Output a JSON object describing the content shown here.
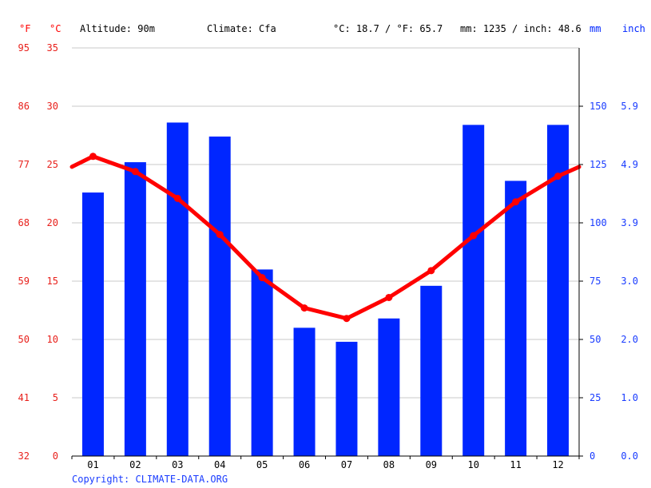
{
  "header": {
    "unit_f": "°F",
    "unit_c": "°C",
    "altitude": "Altitude: 90m",
    "climate": "Climate: Cfa",
    "temp_avg": "°C: 18.7 / °F: 65.7",
    "precip_total": "mm: 1235 / inch: 48.6",
    "unit_mm": "mm",
    "unit_inch": "inch"
  },
  "copyright": "Copyright: CLIMATE-DATA.ORG",
  "colors": {
    "temperature": "#ff0000",
    "precipitation": "#0026ff",
    "grid": "#c8c8c8"
  },
  "chart_data": {
    "type": "bar",
    "categories": [
      "01",
      "02",
      "03",
      "04",
      "05",
      "06",
      "07",
      "08",
      "09",
      "10",
      "11",
      "12"
    ],
    "series": [
      {
        "type": "bar",
        "axis": "right",
        "unit": "mm",
        "values": [
          113,
          126,
          143,
          137,
          80,
          55,
          49,
          59,
          73,
          142,
          118,
          142
        ]
      },
      {
        "type": "line",
        "axis": "left",
        "unit": "°C",
        "values": [
          25.7,
          24.4,
          22.1,
          19.0,
          15.3,
          12.7,
          11.8,
          13.6,
          15.9,
          18.9,
          21.8,
          24.0
        ],
        "edge_start": 24.8,
        "edge_end": 24.8
      }
    ],
    "left_axis_c": {
      "ticks": [
        "0",
        "5",
        "10",
        "15",
        "20",
        "25",
        "30",
        "35"
      ],
      "range": [
        0,
        35
      ]
    },
    "left_axis_f": {
      "ticks": [
        "32",
        "41",
        "50",
        "59",
        "68",
        "77",
        "86",
        "95"
      ]
    },
    "right_axis_mm": {
      "ticks": [
        "0",
        "25",
        "50",
        "75",
        "100",
        "125",
        "150"
      ],
      "range": [
        0,
        175
      ]
    },
    "right_axis_inch": {
      "ticks": [
        "0.0",
        "1.0",
        "2.0",
        "3.0",
        "3.9",
        "4.9",
        "5.9"
      ]
    },
    "grid": true
  }
}
